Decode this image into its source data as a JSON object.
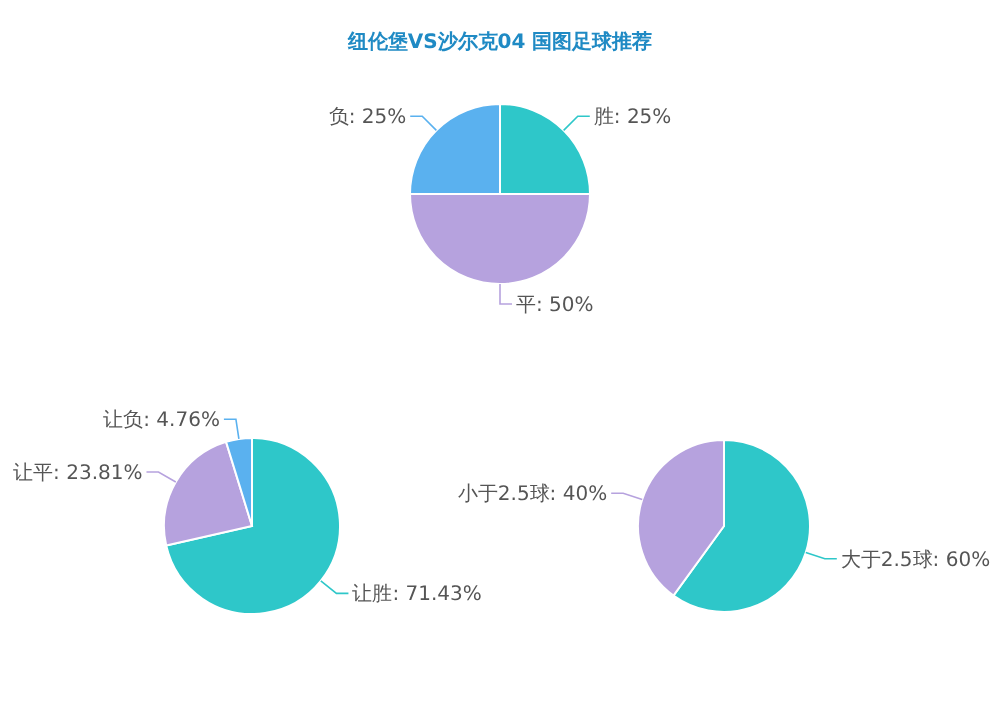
{
  "chart_data": [
    {
      "type": "pie",
      "title": "纽伦堡VS沙尔克04 国图足球推荐",
      "categories": [
        "胜",
        "平",
        "负"
      ],
      "values": [
        25,
        50,
        25
      ],
      "value_labels": [
        "25%",
        "50%",
        "25%"
      ],
      "colors": [
        "#2ec7c9",
        "#b6a2de",
        "#5ab1ef"
      ]
    },
    {
      "type": "pie",
      "categories": [
        "让胜",
        "让平",
        "让负"
      ],
      "values": [
        71.43,
        23.81,
        4.76
      ],
      "value_labels": [
        "71.43%",
        "23.81%",
        "4.76%"
      ],
      "colors": [
        "#2ec7c9",
        "#b6a2de",
        "#5ab1ef"
      ]
    },
    {
      "type": "pie",
      "categories": [
        "大于2.5球",
        "小于2.5球"
      ],
      "values": [
        60,
        40
      ],
      "value_labels": [
        "60%",
        "40%"
      ],
      "colors": [
        "#2ec7c9",
        "#b6a2de"
      ]
    }
  ]
}
